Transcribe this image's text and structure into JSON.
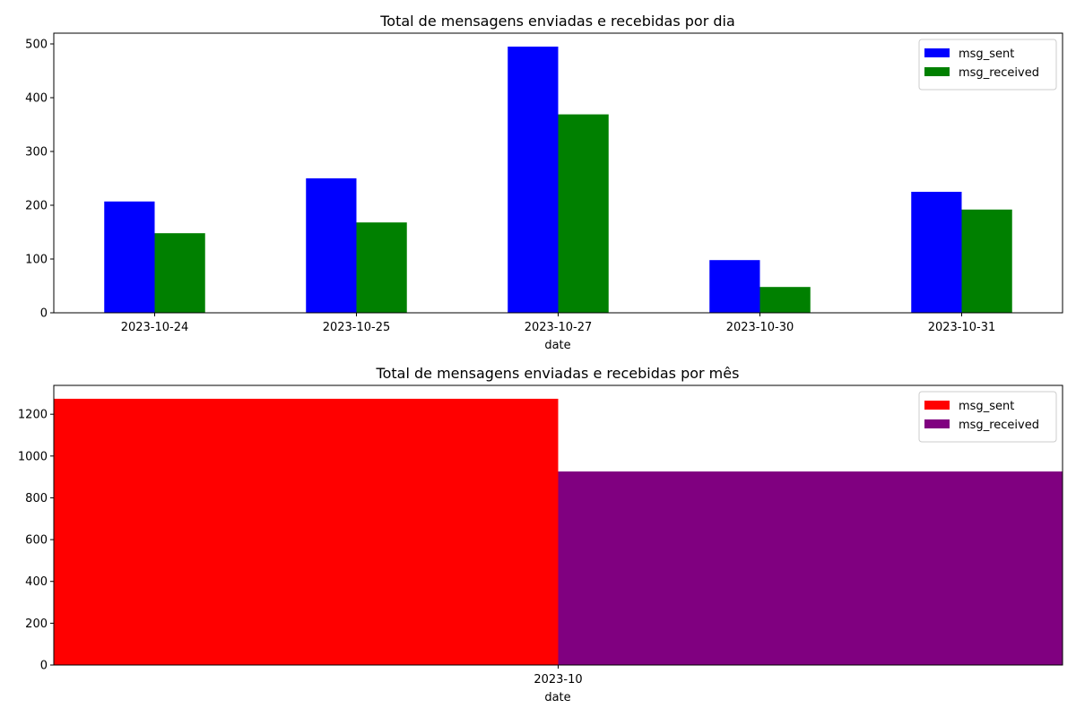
{
  "chart_data": [
    {
      "type": "bar",
      "title": "Total de mensagens enviadas e recebidas por dia",
      "xlabel": "date",
      "ylabel": "",
      "categories": [
        "2023-10-24",
        "2023-10-25",
        "2023-10-27",
        "2023-10-30",
        "2023-10-31"
      ],
      "series": [
        {
          "name": "msg_sent",
          "color": "#0000ff",
          "values": [
            207,
            250,
            495,
            98,
            225
          ]
        },
        {
          "name": "msg_received",
          "color": "#008000",
          "values": [
            148,
            168,
            369,
            48,
            192
          ]
        }
      ],
      "ylim": [
        0,
        520
      ],
      "yticks": [
        0,
        100,
        200,
        300,
        400,
        500
      ],
      "ytick_labels": [
        "0",
        "100",
        "200",
        "300",
        "400",
        "500"
      ],
      "legend": "top-right",
      "grid": false
    },
    {
      "type": "bar",
      "title": "Total de mensagens enviadas e recebidas por mês",
      "xlabel": "date",
      "ylabel": "",
      "categories": [
        "2023-10"
      ],
      "series": [
        {
          "name": "msg_sent",
          "color": "#ff0000",
          "values": [
            1274
          ]
        },
        {
          "name": "msg_received",
          "color": "#800080",
          "values": [
            926
          ]
        }
      ],
      "ylim": [
        0,
        1338
      ],
      "yticks": [
        0,
        200,
        400,
        600,
        800,
        1000,
        1200
      ],
      "ytick_labels": [
        "0",
        "200",
        "400",
        "600",
        "800",
        "1000",
        "1200"
      ],
      "legend": "top-right",
      "grid": false
    }
  ]
}
